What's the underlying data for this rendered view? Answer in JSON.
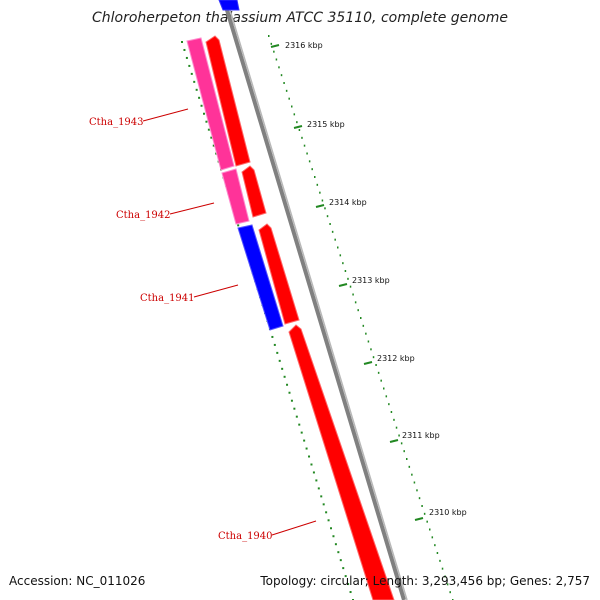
{
  "title": "Chloroherpeton thalassium ATCC 35110, complete genome",
  "footer": {
    "accession": "Accession: NC_011026",
    "summary": "Topology: circular; Length: 3,293,456 bp; Genes: 2,757"
  },
  "colors": {
    "forward_gene": "#ff0000",
    "reverse_gene": "#ff33aa",
    "reverse_gene_alt": "#0000ff",
    "backbone": "#808080",
    "gc_ticks": "#228822",
    "gene_label": "#cc0000"
  },
  "ruler": {
    "unit": "kbp",
    "labels": [
      "2316 kbp",
      "2315 kbp",
      "2314 kbp",
      "2313 kbp",
      "2312 kbp",
      "2311 kbp",
      "2310 kbp"
    ]
  },
  "genes": [
    {
      "locus": "Ctha_1943",
      "strand": "reverse",
      "color": "reverse_gene"
    },
    {
      "locus": "Ctha_1942",
      "strand": "reverse",
      "color": "reverse_gene"
    },
    {
      "locus": "Ctha_1941",
      "strand": "reverse",
      "color": "reverse_gene_alt"
    },
    {
      "locus": "Ctha_1940",
      "strand": "forward",
      "color": "forward_gene"
    }
  ]
}
